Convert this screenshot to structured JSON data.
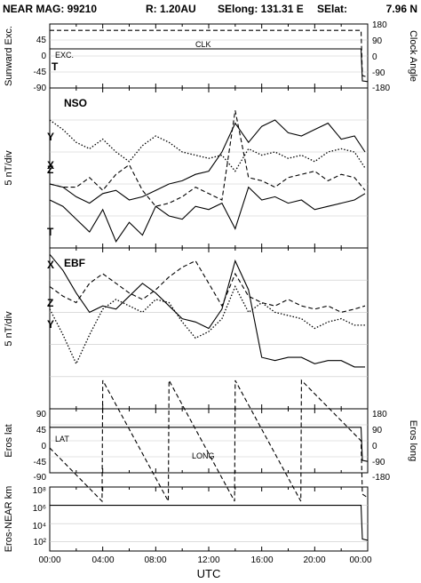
{
  "header": {
    "title": "NEAR MAG: 99210",
    "r": "R: 1.20AU",
    "selong": "SElong: 131.31 E",
    "selat": "SElat:",
    "selat_value": "7.96 N"
  },
  "x_axis": {
    "label": "UTC",
    "tick_labels": [
      "00:00",
      "04:00",
      "08:00",
      "12:00",
      "16:00",
      "20:00",
      "00:00"
    ],
    "range_hours": [
      0,
      24
    ]
  },
  "chart_data": [
    {
      "type": "line",
      "panel": "sunward-clock",
      "ylabel": "Sunward Exc.",
      "ylabel_right": "Clock Angle",
      "yticks_left": [
        "45",
        "0",
        "-45",
        "-90"
      ],
      "yticks_right": [
        "180",
        "90",
        "0",
        "-90",
        "-180"
      ],
      "ylim": [
        -90,
        90
      ],
      "labels": [
        "EXC.",
        "CLK",
        "T"
      ],
      "series": [
        {
          "name": "EXC.",
          "style": "solid",
          "x": [
            0,
            23.5,
            23.6,
            24
          ],
          "y": [
            20,
            20,
            -70,
            -72
          ]
        },
        {
          "name": "CLK",
          "style": "dashed",
          "x": [
            0,
            23.5,
            23.6,
            24
          ],
          "y": [
            72,
            72,
            -55,
            -60
          ]
        }
      ]
    },
    {
      "type": "line",
      "panel": "nso",
      "title": "NSO",
      "ylabel": "5 nT/div",
      "labels": [
        "Y",
        "X",
        "Z",
        "T"
      ],
      "series": [
        {
          "name": "Y",
          "style": "dotted",
          "x": [
            0,
            1,
            2,
            3,
            4,
            5,
            6,
            7,
            8,
            9,
            10,
            11,
            12,
            13,
            14,
            15,
            16,
            17,
            18,
            19,
            20,
            21,
            22,
            23,
            23.8
          ],
          "y": [
            8.0,
            7.4,
            6.6,
            6.2,
            6.8,
            6.0,
            5.4,
            6.4,
            7.0,
            6.6,
            6.0,
            5.8,
            5.6,
            5.8,
            4.8,
            6.2,
            5.8,
            6.0,
            5.6,
            5.8,
            5.4,
            6.0,
            6.2,
            6.0,
            5.0
          ]
        },
        {
          "name": "X",
          "style": "solid",
          "x": [
            0,
            1,
            2,
            3,
            4,
            5,
            6,
            7,
            8,
            9,
            10,
            11,
            12,
            13,
            14,
            15,
            16,
            17,
            18,
            19,
            20,
            21,
            22,
            23,
            23.8
          ],
          "y": [
            4.0,
            3.8,
            3.2,
            2.8,
            3.4,
            3.6,
            3.0,
            3.2,
            3.6,
            4.0,
            4.2,
            4.6,
            4.8,
            6.0,
            7.8,
            6.6,
            7.6,
            8.0,
            7.2,
            7.0,
            7.4,
            7.8,
            6.8,
            7.0,
            6.0
          ]
        },
        {
          "name": "Z",
          "style": "dashed",
          "x": [
            0,
            1,
            2,
            3,
            4,
            5,
            6,
            7,
            8,
            9,
            10,
            11,
            12,
            13,
            14,
            15,
            16,
            17,
            18,
            19,
            20,
            21,
            22,
            23,
            23.8
          ],
          "y": [
            4.0,
            3.8,
            3.8,
            4.4,
            3.6,
            4.6,
            5.2,
            3.6,
            2.6,
            2.8,
            3.2,
            3.8,
            3.4,
            3.0,
            8.6,
            4.4,
            4.2,
            3.8,
            4.4,
            4.6,
            4.8,
            4.2,
            4.6,
            4.4,
            3.6
          ]
        },
        {
          "name": "T",
          "style": "solid",
          "x": [
            0,
            1,
            2,
            3,
            4,
            5,
            6,
            7,
            8,
            9,
            10,
            11,
            12,
            13,
            14,
            15,
            16,
            17,
            18,
            19,
            20,
            21,
            22,
            23,
            23.8
          ],
          "y": [
            3.0,
            2.6,
            1.8,
            1.0,
            2.4,
            0.4,
            1.6,
            0.8,
            2.6,
            2.0,
            1.8,
            2.6,
            2.4,
            2.8,
            1.2,
            3.8,
            3.0,
            3.2,
            2.8,
            3.0,
            2.4,
            2.6,
            2.8,
            3.0,
            3.4
          ]
        }
      ],
      "ylim": [
        0,
        10
      ]
    },
    {
      "type": "line",
      "panel": "ebf",
      "title": "EBF",
      "ylabel": "5 nT/div",
      "labels": [
        "X",
        "Z",
        "Y"
      ],
      "series": [
        {
          "name": "X",
          "style": "solid",
          "x": [
            0,
            1,
            2,
            3,
            4,
            5,
            6,
            7,
            8,
            9,
            10,
            11,
            12,
            13,
            14,
            15,
            16,
            17,
            18,
            19,
            20,
            21,
            22,
            23,
            23.8
          ],
          "y": [
            9.6,
            8.6,
            7.2,
            6.0,
            6.4,
            6.2,
            7.0,
            7.8,
            7.2,
            6.4,
            5.6,
            5.4,
            5.0,
            6.2,
            9.2,
            7.4,
            3.2,
            3.0,
            3.2,
            3.2,
            2.8,
            3.0,
            3.0,
            2.6,
            2.6
          ]
        },
        {
          "name": "Z",
          "style": "dashed",
          "x": [
            0,
            1,
            2,
            3,
            4,
            5,
            6,
            7,
            8,
            9,
            10,
            11,
            12,
            13,
            14,
            15,
            16,
            17,
            18,
            19,
            20,
            21,
            22,
            23,
            23.8
          ],
          "y": [
            7.6,
            7.0,
            6.6,
            7.8,
            8.4,
            7.8,
            7.2,
            6.8,
            7.4,
            8.2,
            8.8,
            9.2,
            7.8,
            6.4,
            8.4,
            7.0,
            6.6,
            6.4,
            6.8,
            6.4,
            6.2,
            6.4,
            6.0,
            6.2,
            6.4
          ]
        },
        {
          "name": "Y",
          "style": "dotted",
          "x": [
            0,
            1,
            2,
            3,
            4,
            5,
            6,
            7,
            8,
            9,
            10,
            11,
            12,
            13,
            14,
            15,
            16,
            17,
            18,
            19,
            20,
            21,
            22,
            23,
            23.8
          ],
          "y": [
            6.2,
            4.6,
            2.8,
            4.6,
            6.2,
            6.8,
            6.4,
            6.0,
            6.8,
            6.6,
            5.4,
            4.4,
            4.8,
            5.6,
            7.6,
            6.0,
            6.6,
            6.0,
            5.8,
            5.6,
            5.0,
            5.4,
            5.6,
            5.2,
            5.2
          ]
        }
      ],
      "ylim": [
        0,
        10
      ]
    },
    {
      "type": "line",
      "panel": "eros-lat-long",
      "ylabel": "Eros lat",
      "ylabel_right": "Eros long",
      "yticks_left": [
        "90",
        "45",
        "0",
        "-45",
        "-90"
      ],
      "yticks_right": [
        "180",
        "90",
        "0",
        "-90",
        "-180"
      ],
      "ylim": [
        -90,
        90
      ],
      "labels": [
        "LAT",
        "LONG"
      ],
      "series": [
        {
          "name": "LAT",
          "style": "solid",
          "x": [
            0,
            23.5,
            23.6,
            24
          ],
          "y": [
            38,
            38,
            -55,
            -58
          ]
        },
        {
          "name": "LONG",
          "style": "dashed",
          "x": [
            0,
            3.95,
            4.0,
            8.95,
            9.0,
            13.95,
            14.0,
            18.95,
            19.0,
            23.5,
            23.6,
            24
          ],
          "y": [
            -20,
            -170,
            170,
            -170,
            170,
            -170,
            170,
            -170,
            170,
            0,
            -150,
            -160
          ]
        }
      ]
    },
    {
      "type": "line",
      "panel": "eros-near-km",
      "ylabel": "Eros-NEAR km",
      "yticks_left": [
        "10⁸",
        "10⁶",
        "10⁴",
        "10²"
      ],
      "y_scale": "log",
      "ylim": [
        10,
        100000000
      ],
      "series": [
        {
          "name": "Eros-NEAR km",
          "style": "solid",
          "x": [
            0,
            23.5,
            23.6,
            24
          ],
          "y": [
            1000000,
            1000000,
            200,
            150
          ]
        }
      ]
    }
  ]
}
